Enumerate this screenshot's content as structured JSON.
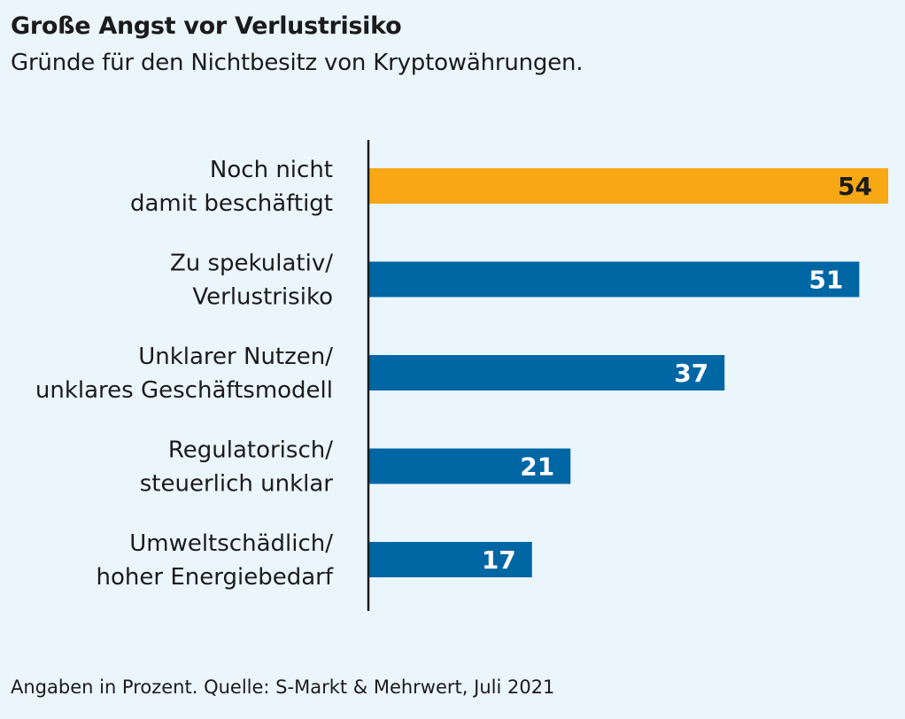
{
  "title": "Große Angst vor Verlustrisiko",
  "subtitle": "Gründe für den Nichtbesitz von Kryptowährungen.",
  "source": "Angaben in Prozent. Quelle: S-Markt & Mehrwert, Juli 2021",
  "colors": {
    "background": "#eaf5fc",
    "highlight": "#f7a814",
    "bar": "#0066a4",
    "axis": "#1b1b1b",
    "text": "#1b1b1b",
    "label_on_highlight": "#1b1b1b",
    "label_on_bar": "#ffffff"
  },
  "chart_data": {
    "type": "bar",
    "orientation": "horizontal",
    "categories": [
      [
        "Noch nicht",
        "damit beschäftigt"
      ],
      [
        "Zu spekulativ/",
        "Verlustrisiko"
      ],
      [
        "Unklarer Nutzen/",
        "unklares Geschäftsmodell"
      ],
      [
        "Regulatorisch/",
        "steuerlich unklar"
      ],
      [
        "Umweltschädlich/",
        "hoher Energiebedarf"
      ]
    ],
    "values": [
      54,
      51,
      37,
      21,
      17
    ],
    "highlight_index": 0,
    "xlim": [
      0,
      54
    ],
    "unit": "Prozent",
    "grid": false,
    "legend": "none"
  }
}
